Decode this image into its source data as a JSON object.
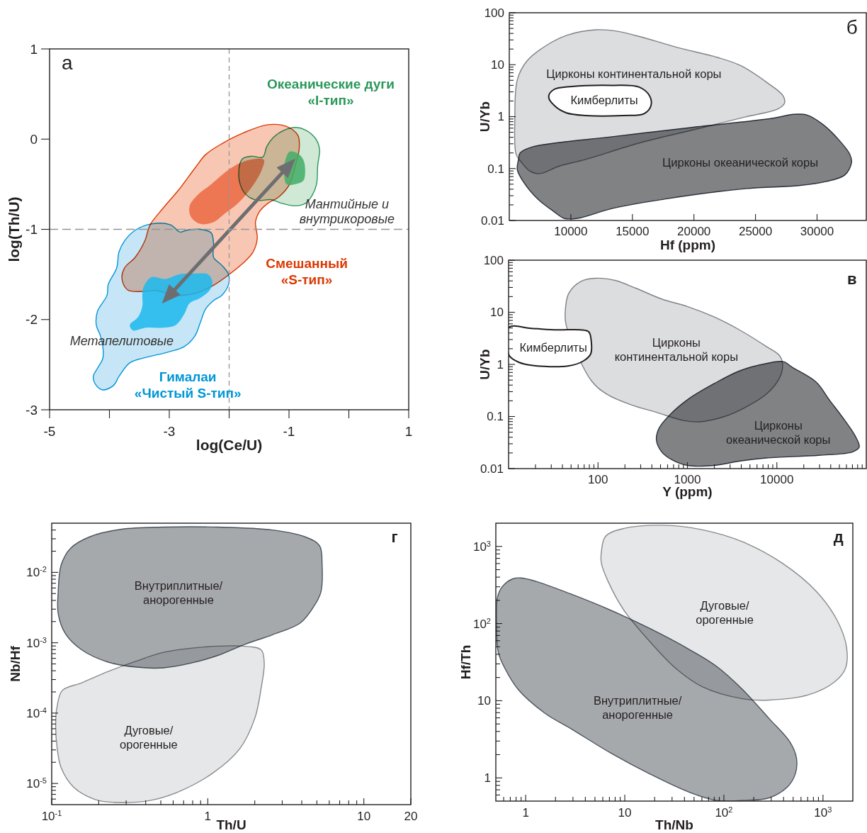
{
  "chart_data": [
    {
      "type": "area",
      "title": "а",
      "xlabel": "log(Ce/U)",
      "ylabel": "log(Th/U)",
      "xlim": [
        -5,
        1
      ],
      "ylim": [
        -3,
        1
      ],
      "xticks": [
        -5,
        {
          "value": -4,
          "label": null
        },
        -3,
        {
          "value": -2,
          "label": null
        },
        -1,
        {
          "value": 0,
          "label": null
        },
        1
      ],
      "yticks": [
        -3,
        -2,
        -1,
        0,
        1
      ],
      "ref_lines": [
        {
          "axis": "x",
          "value": -2,
          "color": "#939598",
          "line_style": "dashed"
        },
        {
          "axis": "y",
          "value": -1,
          "color": "#939598",
          "line_style": "dashed"
        }
      ],
      "annotations": [
        "Мантийные и\nвнутрикоровые",
        "Метапелитовые"
      ],
      "series": [
        {
          "name": "Смешанный\n«S-тип»",
          "color": "#f8c7b4",
          "line_style": "solid",
          "x": [
            -1.35,
            -1.04,
            -0.85,
            -0.83,
            -0.88,
            -0.99,
            -1.17,
            -1.35,
            -1.49,
            -1.56,
            -1.53,
            -1.6,
            -1.76,
            -1.98,
            -2.26,
            -2.57,
            -2.93,
            -3.21,
            -3.48,
            -3.7,
            -3.79,
            -3.75,
            -3.57,
            -3.41,
            -3.32,
            -3.11,
            -2.84,
            -2.57,
            -2.39,
            -2.12,
            -1.76
          ],
          "values": [
            0.16,
            0.14,
            0.04,
            -0.11,
            -0.26,
            -0.5,
            -0.64,
            -0.71,
            -0.8,
            -0.92,
            -1.1,
            -1.25,
            -1.37,
            -1.49,
            -1.62,
            -1.71,
            -1.73,
            -1.68,
            -1.69,
            -1.67,
            -1.55,
            -1.43,
            -1.31,
            -1.13,
            -0.95,
            -0.77,
            -0.56,
            -0.32,
            -0.17,
            -0.05,
            0.07
          ]
        },
        {
          "color": "#ef7f5f",
          "x": [
            -1.42,
            -1.58,
            -1.8,
            -2.03,
            -2.3,
            -2.53,
            -2.66,
            -2.64,
            -2.48,
            -2.26,
            -2.08,
            -1.85,
            -1.62,
            -1.46
          ],
          "values": [
            -0.23,
            -0.22,
            -0.26,
            -0.35,
            -0.5,
            -0.62,
            -0.74,
            -0.86,
            -0.94,
            -0.92,
            -0.83,
            -0.71,
            -0.53,
            -0.35
          ]
        },
        {
          "name": "Океанические дуги\n«I-тип»",
          "color": "#d0e8d6",
          "line_style": "solid",
          "x": [
            -0.88,
            -0.72,
            -0.56,
            -0.49,
            -0.52,
            -0.54,
            -0.61,
            -0.72,
            -0.9,
            -1.13,
            -1.31,
            -1.49,
            -1.65,
            -1.78,
            -1.84,
            -1.78,
            -1.62,
            -1.44,
            -1.37,
            -1.26,
            -1.08
          ],
          "values": [
            0.13,
            0.1,
            0.01,
            -0.11,
            -0.29,
            -0.5,
            -0.62,
            -0.71,
            -0.74,
            -0.71,
            -0.67,
            -0.68,
            -0.65,
            -0.56,
            -0.38,
            -0.22,
            -0.19,
            -0.2,
            -0.08,
            0.02,
            0.1
          ]
        },
        {
          "color": "#5fba7e",
          "x": [
            -0.99,
            -0.85,
            -0.76,
            -0.73,
            -0.76,
            -0.9,
            -1.04,
            -1.08,
            -1.07
          ],
          "values": [
            -0.14,
            -0.16,
            -0.23,
            -0.35,
            -0.46,
            -0.5,
            -0.5,
            -0.41,
            -0.26
          ]
        },
        {
          "name": "Гималаи\n«Чистый S-тип»",
          "color": "#c6e6f7",
          "line_style": "solid",
          "x": [
            -3.3,
            -2.98,
            -2.82,
            -2.71,
            -2.48,
            -2.3,
            -2.26,
            -2.26,
            -2.12,
            -2.01,
            -2.01,
            -2.12,
            -2.26,
            -2.39,
            -2.48,
            -2.57,
            -2.75,
            -3.02,
            -3.39,
            -3.66,
            -3.84,
            -3.93,
            -4.11,
            -4.22,
            -4.27,
            -4.2,
            -4.11,
            -4.11,
            -4.15,
            -4.22,
            -4.2,
            -4.04,
            -4.02,
            -3.88,
            -3.84,
            -3.75,
            -3.57
          ],
          "values": [
            -0.94,
            -0.95,
            -1.03,
            -1.01,
            -1.0,
            -1.04,
            -1.16,
            -1.31,
            -1.4,
            -1.5,
            -1.61,
            -1.73,
            -1.79,
            -1.88,
            -2.03,
            -2.18,
            -2.3,
            -2.36,
            -2.42,
            -2.48,
            -2.63,
            -2.73,
            -2.78,
            -2.73,
            -2.63,
            -2.54,
            -2.43,
            -2.3,
            -2.18,
            -2.06,
            -1.91,
            -1.73,
            -1.61,
            -1.43,
            -1.25,
            -1.13,
            -1.01
          ]
        },
        {
          "color": "#3dc3f0",
          "x": [
            -3.43,
            -3.3,
            -3.07,
            -2.84,
            -2.57,
            -2.35,
            -2.28,
            -2.32,
            -2.48,
            -2.66,
            -2.75,
            -2.89,
            -3.11,
            -3.39,
            -3.61,
            -3.66,
            -3.52,
            -3.45,
            -3.45
          ],
          "values": [
            -1.64,
            -1.53,
            -1.55,
            -1.5,
            -1.49,
            -1.5,
            -1.58,
            -1.67,
            -1.76,
            -1.82,
            -1.94,
            -2.06,
            -2.09,
            -2.09,
            -2.12,
            -2.06,
            -1.97,
            -1.85,
            -1.73
          ]
        },
        {
          "type": "line",
          "color": "#6d6e71",
          "marker": "triangle",
          "x": [
            -2.98,
            -1.04
          ],
          "values": [
            -1.72,
            -0.32
          ]
        }
      ]
    },
    {
      "type": "area",
      "title": "б",
      "xlabel": "Hf (ppm)",
      "ylabel": "U/Yb",
      "log": "y",
      "xlim": [
        5000,
        34000
      ],
      "ylim": [
        0.01,
        100
      ],
      "xticks": [
        10000,
        15000,
        20000,
        25000,
        30000
      ],
      "yticks": [
        0.01,
        {
          "value": 0.02,
          "label": null
        },
        {
          "value": 0.03,
          "label": null
        },
        {
          "value": 0.04,
          "label": null
        },
        {
          "value": 0.05,
          "label": null
        },
        {
          "value": 0.06,
          "label": null
        },
        {
          "value": 0.07,
          "label": null
        },
        {
          "value": 0.08,
          "label": null
        },
        {
          "value": 0.09,
          "label": null
        },
        0.1,
        {
          "value": 0.2,
          "label": null
        },
        {
          "value": 0.3,
          "label": null
        },
        {
          "value": 0.4,
          "label": null
        },
        {
          "value": 0.5,
          "label": null
        },
        {
          "value": 0.6,
          "label": null
        },
        {
          "value": 0.7,
          "label": null
        },
        {
          "value": 0.8,
          "label": null
        },
        {
          "value": 0.9,
          "label": null
        },
        1,
        {
          "value": 2,
          "label": null
        },
        {
          "value": 3,
          "label": null
        },
        {
          "value": 4,
          "label": null
        },
        {
          "value": 5,
          "label": null
        },
        {
          "value": 6,
          "label": null
        },
        {
          "value": 7,
          "label": null
        },
        {
          "value": 8,
          "label": null
        },
        {
          "value": 9,
          "label": null
        },
        10,
        {
          "value": 20,
          "label": null
        },
        {
          "value": 30,
          "label": null
        },
        {
          "value": 40,
          "label": null
        },
        {
          "value": 50,
          "label": null
        },
        {
          "value": 60,
          "label": null
        },
        {
          "value": 70,
          "label": null
        },
        {
          "value": 80,
          "label": null
        },
        {
          "value": 90,
          "label": null
        },
        100
      ],
      "series": [
        {
          "name": "Цирконы континентальной коры",
          "color": "#dcdddf",
          "line_style": "solid",
          "x": [
            5550,
            5450,
            5650,
            6400,
            7950,
            9700,
            12050,
            13800,
            15950,
            18800,
            21600,
            23750,
            25950,
            27250,
            27350,
            26800,
            24200,
            19850,
            15550,
            11200,
            9000,
            7500,
            6650,
            5900
          ],
          "values": [
            0.19,
            0.88,
            5.1,
            11.5,
            23,
            37,
            47,
            44,
            33,
            21,
            14.5,
            9.7,
            4.5,
            2.5,
            1.8,
            1.4,
            0.99,
            0.55,
            0.31,
            0.15,
            0.11,
            0.08,
            0.09,
            0.14
          ]
        },
        {
          "name": "Цирконы океанической коры",
          "color": "#808285",
          "line_style": "solid",
          "x": [
            5880,
            6850,
            13350,
            19850,
            26400,
            28100,
            29200,
            30500,
            31800,
            32650,
            32800,
            32250,
            30700,
            28550,
            24200,
            17700,
            13350,
            10550,
            9450,
            8600,
            7300,
            6200,
            5650,
            5750
          ],
          "values": [
            0.2,
            0.26,
            0.41,
            0.62,
            0.93,
            1.11,
            1.07,
            0.7,
            0.35,
            0.19,
            0.13,
            0.075,
            0.056,
            0.047,
            0.041,
            0.026,
            0.017,
            0.011,
            0.011,
            0.015,
            0.026,
            0.053,
            0.095,
            0.15
          ]
        },
        {
          "name": "Кимберлиты",
          "color": "#ffffff",
          "line_style": "solid",
          "x": [
            8200,
            8600,
            10100,
            13350,
            15550,
            16400,
            16500,
            15950,
            14250,
            11200,
            9650,
            8700
          ],
          "values": [
            2.4,
            3.3,
            3.8,
            4.0,
            3.7,
            2.5,
            1.6,
            1.14,
            1.05,
            1.05,
            1.18,
            1.6
          ]
        }
      ]
    },
    {
      "type": "area",
      "title": "в",
      "xlabel": "Y (ppm)",
      "ylabel": "U/Yb",
      "log": "xy",
      "xlim": [
        10,
        100000
      ],
      "ylim": [
        0.01,
        100
      ],
      "xticks": [
        {
          "value": 20,
          "label": null
        },
        {
          "value": 30,
          "label": null
        },
        {
          "value": 40,
          "label": null
        },
        {
          "value": 50,
          "label": null
        },
        {
          "value": 60,
          "label": null
        },
        {
          "value": 70,
          "label": null
        },
        {
          "value": 80,
          "label": null
        },
        {
          "value": 90,
          "label": null
        },
        100,
        {
          "value": 200,
          "label": null
        },
        {
          "value": 300,
          "label": null
        },
        {
          "value": 400,
          "label": null
        },
        {
          "value": 500,
          "label": null
        },
        {
          "value": 600,
          "label": null
        },
        {
          "value": 700,
          "label": null
        },
        {
          "value": 800,
          "label": null
        },
        {
          "value": 900,
          "label": null
        },
        1000,
        {
          "value": 2000,
          "label": null
        },
        {
          "value": 3000,
          "label": null
        },
        {
          "value": 4000,
          "label": null
        },
        {
          "value": 5000,
          "label": null
        },
        {
          "value": 6000,
          "label": null
        },
        {
          "value": 7000,
          "label": null
        },
        {
          "value": 8000,
          "label": null
        },
        {
          "value": 9000,
          "label": null
        },
        10000,
        {
          "value": 20000,
          "label": null
        },
        {
          "value": 30000,
          "label": null
        },
        {
          "value": 40000,
          "label": null
        },
        {
          "value": 50000,
          "label": null
        },
        {
          "value": 60000,
          "label": null
        },
        {
          "value": 70000,
          "label": null
        },
        {
          "value": 80000,
          "label": null
        },
        {
          "value": 90000,
          "label": null
        }
      ],
      "yticks": [
        0.01,
        {
          "value": 0.02,
          "label": null
        },
        {
          "value": 0.03,
          "label": null
        },
        {
          "value": 0.04,
          "label": null
        },
        {
          "value": 0.05,
          "label": null
        },
        {
          "value": 0.06,
          "label": null
        },
        {
          "value": 0.07,
          "label": null
        },
        {
          "value": 0.08,
          "label": null
        },
        {
          "value": 0.09,
          "label": null
        },
        0.1,
        {
          "value": 0.2,
          "label": null
        },
        {
          "value": 0.3,
          "label": null
        },
        {
          "value": 0.4,
          "label": null
        },
        {
          "value": 0.5,
          "label": null
        },
        {
          "value": 0.6,
          "label": null
        },
        {
          "value": 0.7,
          "label": null
        },
        {
          "value": 0.8,
          "label": null
        },
        {
          "value": 0.9,
          "label": null
        },
        1,
        {
          "value": 2,
          "label": null
        },
        {
          "value": 3,
          "label": null
        },
        {
          "value": 4,
          "label": null
        },
        {
          "value": 5,
          "label": null
        },
        {
          "value": 6,
          "label": null
        },
        {
          "value": 7,
          "label": null
        },
        {
          "value": 8,
          "label": null
        },
        {
          "value": 9,
          "label": null
        },
        10,
        {
          "value": 20,
          "label": null
        },
        {
          "value": 30,
          "label": null
        },
        {
          "value": 40,
          "label": null
        },
        {
          "value": 50,
          "label": null
        },
        {
          "value": 60,
          "label": null
        },
        {
          "value": 70,
          "label": null
        },
        {
          "value": 80,
          "label": null
        },
        {
          "value": 90,
          "label": null
        },
        100
      ],
      "series": [
        {
          "name": "Цирконы\nконтинентальной коры",
          "color": "#dcdddf",
          "line_style": "solid",
          "x": [
            43,
            47,
            64,
            93,
            155,
            265,
            515,
            1000,
            2000,
            3900,
            7650,
            10700,
            11600,
            10700,
            7650,
            4450,
            2600,
            1350,
            900,
            450,
            230,
            125,
            84,
            44
          ],
          "values": [
            10.2,
            23,
            39,
            45,
            41,
            29,
            18,
            12.9,
            8.1,
            4.5,
            2.2,
            1.48,
            0.98,
            0.55,
            0.27,
            0.15,
            0.1,
            0.079,
            0.084,
            0.12,
            0.17,
            0.27,
            0.49,
            5.7
          ]
        },
        {
          "name": "Цирконы\nокеанической коры",
          "color": "#808285",
          "line_style": "solid",
          "x": [
            11800,
            15000,
            27400,
            38500,
            57600,
            75300,
            83400,
            70500,
            29400,
            7650,
            3900,
            2000,
            1000,
            680,
            515,
            450,
            480,
            630,
            1000,
            2000,
            3900,
            7650
          ],
          "values": [
            1.13,
            0.87,
            0.46,
            0.21,
            0.084,
            0.042,
            0.026,
            0.021,
            0.018,
            0.016,
            0.014,
            0.0115,
            0.0115,
            0.0146,
            0.021,
            0.035,
            0.059,
            0.106,
            0.21,
            0.43,
            0.76,
            1.04
          ]
        },
        {
          "name": "Кимберлиты",
          "color": "#ffffff",
          "line_style": "solid",
          "x": [
            10,
            18,
            35,
            64,
            79,
            84,
            83,
            69,
            46,
            18,
            13,
            10.4,
            10
          ],
          "values": [
            5.1,
            4.9,
            4.6,
            4.6,
            4.2,
            2.8,
            1.6,
            1.17,
            0.93,
            0.96,
            1.1,
            1.4,
            1.57
          ]
        }
      ]
    },
    {
      "type": "area",
      "title": "г",
      "xlabel": "Th/U",
      "ylabel": "Nb/Hf",
      "log": "xy",
      "xlim": [
        0.1,
        20
      ],
      "ylim": [
        5e-06,
        0.05
      ],
      "xticks": [
        {
          "value": 0.1,
          "label": "10$^{-1}$"
        },
        {
          "value": 0.2,
          "label": null
        },
        {
          "value": 0.3,
          "label": null
        },
        {
          "value": 0.4,
          "label": null
        },
        {
          "value": 0.5,
          "label": null
        },
        {
          "value": 0.6,
          "label": null
        },
        {
          "value": 0.7,
          "label": null
        },
        {
          "value": 0.8,
          "label": null
        },
        {
          "value": 0.9,
          "label": null
        },
        1,
        {
          "value": 2,
          "label": null
        },
        {
          "value": 3,
          "label": null
        },
        {
          "value": 4,
          "label": null
        },
        {
          "value": 5,
          "label": null
        },
        {
          "value": 6,
          "label": null
        },
        {
          "value": 7,
          "label": null
        },
        {
          "value": 8,
          "label": null
        },
        {
          "value": 9,
          "label": null
        },
        10,
        20
      ],
      "yticks": [
        {
          "value": 6e-06,
          "label": null
        },
        {
          "value": 7e-06,
          "label": null
        },
        {
          "value": 8e-06,
          "label": null
        },
        {
          "value": 9e-06,
          "label": null
        },
        {
          "value": 1e-05,
          "label": "10$^{-5}$"
        },
        {
          "value": 2e-05,
          "label": null
        },
        {
          "value": 3e-05,
          "label": null
        },
        {
          "value": 4e-05,
          "label": null
        },
        {
          "value": 5e-05,
          "label": null
        },
        {
          "value": 6e-05,
          "label": null
        },
        {
          "value": 7e-05,
          "label": null
        },
        {
          "value": 8e-05,
          "label": null
        },
        {
          "value": 9e-05,
          "label": null
        },
        {
          "value": 0.0001,
          "label": "10$^{-4}$"
        },
        {
          "value": 0.0002,
          "label": null
        },
        {
          "value": 0.0003,
          "label": null
        },
        {
          "value": 0.0004,
          "label": null
        },
        {
          "value": 0.0005,
          "label": null
        },
        {
          "value": 0.0006,
          "label": null
        },
        {
          "value": 0.0007,
          "label": null
        },
        {
          "value": 0.0008,
          "label": null
        },
        {
          "value": 0.0009,
          "label": null
        },
        {
          "value": 0.001,
          "label": "10$^{-3}$"
        },
        {
          "value": 0.002,
          "label": null
        },
        {
          "value": 0.003,
          "label": null
        },
        {
          "value": 0.004,
          "label": null
        },
        {
          "value": 0.005,
          "label": null
        },
        {
          "value": 0.006,
          "label": null
        },
        {
          "value": 0.007,
          "label": null
        },
        {
          "value": 0.008,
          "label": null
        },
        {
          "value": 0.009,
          "label": null
        },
        {
          "value": 0.01,
          "label": "10$^{-2}$"
        },
        {
          "value": 0.02,
          "label": null
        },
        {
          "value": 0.03,
          "label": null
        },
        {
          "value": 0.04,
          "label": null
        }
      ],
      "series": [
        {
          "name": "Внутриплитные/\nанорогенные",
          "color": "#a7a9ac",
          "line_style": "solid",
          "x": [
            0.11,
            0.115,
            0.132,
            0.175,
            0.28,
            0.52,
            1.16,
            2.6,
            4.2,
            5.2,
            5.4,
            5.3,
            4.7,
            3.9,
            2.6,
            1.73,
            1.16,
            0.77,
            0.52,
            0.35,
            0.23,
            0.156,
            0.122,
            0.11
          ],
          "values": [
            0.0052,
            0.0128,
            0.022,
            0.032,
            0.041,
            0.044,
            0.044,
            0.04,
            0.032,
            0.024,
            0.0129,
            0.0052,
            0.0031,
            0.0019,
            0.0013,
            0.00095,
            0.00066,
            0.00051,
            0.00044,
            0.00045,
            0.00053,
            0.00079,
            0.00136,
            0.0026
          ]
        },
        {
          "name": "Дуговые/\nорогенные",
          "color": "#e6e7e8",
          "line_style": "solid",
          "x": [
            0.108,
            0.117,
            0.156,
            0.23,
            0.35,
            0.52,
            0.95,
            1.73,
            2.2,
            2.3,
            2.2,
            2.0,
            1.6,
            1.07,
            0.63,
            0.42,
            0.25,
            0.19,
            0.138,
            0.115,
            0.108,
            0.106
          ],
          "values": [
            0.00012,
            0.00021,
            0.00027,
            0.00039,
            0.00055,
            0.00073,
            0.00087,
            0.00089,
            0.00079,
            0.00051,
            0.00023,
            8.4e-05,
            3.1e-05,
            1.39e-05,
            7.4e-06,
            5.7e-06,
            5.4e-06,
            5.9e-06,
            8.9e-06,
            1.67e-05,
            3.4e-05,
            7e-05
          ]
        }
      ]
    },
    {
      "type": "area",
      "title": "д",
      "xlabel": "Th/Nb",
      "ylabel": "Hf/Th",
      "log": "xy",
      "xlim": [
        0.5,
        2000
      ],
      "ylim": [
        0.5,
        2000
      ],
      "xticks": [
        {
          "value": 0.6,
          "label": null
        },
        {
          "value": 0.7,
          "label": null
        },
        {
          "value": 0.8,
          "label": null
        },
        {
          "value": 0.9,
          "label": null
        },
        1,
        {
          "value": 2,
          "label": null
        },
        {
          "value": 3,
          "label": null
        },
        {
          "value": 4,
          "label": null
        },
        {
          "value": 5,
          "label": null
        },
        {
          "value": 6,
          "label": null
        },
        {
          "value": 7,
          "label": null
        },
        {
          "value": 8,
          "label": null
        },
        {
          "value": 9,
          "label": null
        },
        10,
        {
          "value": 20,
          "label": null
        },
        {
          "value": 30,
          "label": null
        },
        {
          "value": 40,
          "label": null
        },
        {
          "value": 50,
          "label": null
        },
        {
          "value": 60,
          "label": null
        },
        {
          "value": 70,
          "label": null
        },
        {
          "value": 80,
          "label": null
        },
        {
          "value": 90,
          "label": null
        },
        {
          "value": 100,
          "label": "10$^{2}$"
        },
        {
          "value": 200,
          "label": null
        },
        {
          "value": 300,
          "label": null
        },
        {
          "value": 400,
          "label": null
        },
        {
          "value": 500,
          "label": null
        },
        {
          "value": 600,
          "label": null
        },
        {
          "value": 700,
          "label": null
        },
        {
          "value": 800,
          "label": null
        },
        {
          "value": 900,
          "label": null
        },
        {
          "value": 1000,
          "label": "10$^{3}$"
        }
      ],
      "yticks": [
        {
          "value": 0.6,
          "label": null
        },
        {
          "value": 0.7,
          "label": null
        },
        {
          "value": 0.8,
          "label": null
        },
        {
          "value": 0.9,
          "label": null
        },
        1,
        {
          "value": 2,
          "label": null
        },
        {
          "value": 3,
          "label": null
        },
        {
          "value": 4,
          "label": null
        },
        {
          "value": 5,
          "label": null
        },
        {
          "value": 6,
          "label": null
        },
        {
          "value": 7,
          "label": null
        },
        {
          "value": 8,
          "label": null
        },
        {
          "value": 9,
          "label": null
        },
        10,
        {
          "value": 20,
          "label": null
        },
        {
          "value": 30,
          "label": null
        },
        {
          "value": 40,
          "label": null
        },
        {
          "value": 50,
          "label": null
        },
        {
          "value": 60,
          "label": null
        },
        {
          "value": 70,
          "label": null
        },
        {
          "value": 80,
          "label": null
        },
        {
          "value": 90,
          "label": null
        },
        {
          "value": 100,
          "label": "10$^{2}$"
        },
        {
          "value": 200,
          "label": null
        },
        {
          "value": 300,
          "label": null
        },
        {
          "value": 400,
          "label": null
        },
        {
          "value": 500,
          "label": null
        },
        {
          "value": 600,
          "label": null
        },
        {
          "value": 700,
          "label": null
        },
        {
          "value": 800,
          "label": null
        },
        {
          "value": 900,
          "label": null
        },
        {
          "value": 1000,
          "label": "10$^{3}$"
        }
      ],
      "series": [
        {
          "name": "Внутриплитные/\nанорогенные",
          "color": "#a7a9ac",
          "line_style": "solid",
          "x": [
            0.52,
            0.58,
            0.74,
            0.9,
            1.29,
            2.9,
            7.2,
            18,
            45,
            84,
            154,
            285,
            465,
            540,
            525,
            436,
            285,
            154,
            84,
            45,
            18,
            7.2,
            2.9,
            1.56,
            0.84,
            0.62,
            0.53,
            0.51
          ],
          "values": [
            220,
            300,
            380,
            390,
            350,
            240,
            149,
            86,
            46,
            28,
            14,
            5.9,
            2.9,
            1.8,
            1.12,
            0.76,
            0.55,
            0.51,
            0.51,
            0.65,
            1.12,
            2.1,
            4.3,
            6.9,
            14,
            26,
            42,
            86
          ]
        },
        {
          "name": "Дуговые/\nорогенные",
          "color": "#e6e7e8",
          "line_style": "solid",
          "x": [
            5.8,
            6.4,
            9.8,
            24,
            61,
            154,
            386,
            860,
            1400,
            1730,
            1680,
            1320,
            710,
            285,
            154,
            61,
            33,
            18,
            9.8,
            6.8,
            5.8
          ],
          "values": [
            840,
            1350,
            1710,
            1880,
            1640,
            1150,
            610,
            260,
            108,
            49,
            26,
            17.7,
            11.9,
            10.2,
            10.6,
            15.1,
            26,
            58,
            149,
            350,
            610
          ]
        }
      ]
    }
  ]
}
